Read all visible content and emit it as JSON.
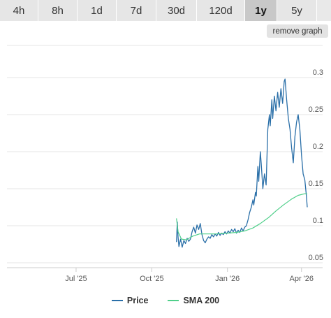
{
  "tabs": [
    {
      "label": "4h",
      "active": false
    },
    {
      "label": "8h",
      "active": false
    },
    {
      "label": "1d",
      "active": false
    },
    {
      "label": "7d",
      "active": false
    },
    {
      "label": "30d",
      "active": false
    },
    {
      "label": "120d",
      "active": false
    },
    {
      "label": "1y",
      "active": true
    },
    {
      "label": "5y",
      "active": false
    }
  ],
  "remove_graph_label": "remove graph",
  "colors": {
    "price": "#2a6fa8",
    "sma": "#4fcf8a",
    "grid": "#e6e6e6",
    "axis_text": "#555555"
  },
  "chart_data": {
    "type": "line",
    "x_ticks": [
      "Jul '25",
      "Oct '25",
      "Jan '26",
      "Apr '26"
    ],
    "x_tick_dates": [
      "2025-07-01",
      "2025-10-01",
      "2026-01-01",
      "2026-04-01"
    ],
    "x_range": [
      "2025-04-08",
      "2026-04-08"
    ],
    "y_ticks": [
      0.05,
      0.1,
      0.15,
      0.2,
      0.25,
      0.3
    ],
    "ylim": [
      0.05,
      0.3
    ],
    "grid": true,
    "legend_position": "bottom",
    "series": [
      {
        "name": "Price",
        "color": "#2a6fa8",
        "points": [
          [
            "2025-10-31",
            0.078
          ],
          [
            "2025-11-01",
            0.105
          ],
          [
            "2025-11-02",
            0.085
          ],
          [
            "2025-11-03",
            0.072
          ],
          [
            "2025-11-05",
            0.082
          ],
          [
            "2025-11-07",
            0.071
          ],
          [
            "2025-11-09",
            0.08
          ],
          [
            "2025-11-11",
            0.076
          ],
          [
            "2025-11-13",
            0.083
          ],
          [
            "2025-11-15",
            0.079
          ],
          [
            "2025-11-17",
            0.082
          ],
          [
            "2025-11-19",
            0.092
          ],
          [
            "2025-11-21",
            0.098
          ],
          [
            "2025-11-23",
            0.09
          ],
          [
            "2025-11-25",
            0.101
          ],
          [
            "2025-11-27",
            0.095
          ],
          [
            "2025-11-29",
            0.103
          ],
          [
            "2025-12-01",
            0.088
          ],
          [
            "2025-12-03",
            0.08
          ],
          [
            "2025-12-05",
            0.077
          ],
          [
            "2025-12-07",
            0.082
          ],
          [
            "2025-12-09",
            0.085
          ],
          [
            "2025-12-11",
            0.083
          ],
          [
            "2025-12-13",
            0.088
          ],
          [
            "2025-12-15",
            0.085
          ],
          [
            "2025-12-17",
            0.089
          ],
          [
            "2025-12-19",
            0.086
          ],
          [
            "2025-12-21",
            0.091
          ],
          [
            "2025-12-23",
            0.087
          ],
          [
            "2025-12-25",
            0.09
          ],
          [
            "2025-12-27",
            0.088
          ],
          [
            "2025-12-29",
            0.092
          ],
          [
            "2025-12-31",
            0.089
          ],
          [
            "2026-01-02",
            0.093
          ],
          [
            "2026-01-04",
            0.09
          ],
          [
            "2026-01-06",
            0.095
          ],
          [
            "2026-01-08",
            0.092
          ],
          [
            "2026-01-10",
            0.096
          ],
          [
            "2026-01-12",
            0.09
          ],
          [
            "2026-01-14",
            0.094
          ],
          [
            "2026-01-16",
            0.091
          ],
          [
            "2026-01-18",
            0.097
          ],
          [
            "2026-01-20",
            0.093
          ],
          [
            "2026-01-22",
            0.098
          ],
          [
            "2026-01-24",
            0.1
          ],
          [
            "2026-01-26",
            0.108
          ],
          [
            "2026-01-28",
            0.118
          ],
          [
            "2026-01-30",
            0.125
          ],
          [
            "2026-02-01",
            0.135
          ],
          [
            "2026-02-02",
            0.128
          ],
          [
            "2026-02-04",
            0.145
          ],
          [
            "2026-02-05",
            0.14
          ],
          [
            "2026-02-07",
            0.18
          ],
          [
            "2026-02-08",
            0.16
          ],
          [
            "2026-02-10",
            0.2
          ],
          [
            "2026-02-11",
            0.185
          ],
          [
            "2026-02-13",
            0.15
          ],
          [
            "2026-02-15",
            0.17
          ],
          [
            "2026-02-17",
            0.155
          ],
          [
            "2026-02-19",
            0.23
          ],
          [
            "2026-02-21",
            0.25
          ],
          [
            "2026-02-22",
            0.235
          ],
          [
            "2026-02-24",
            0.27
          ],
          [
            "2026-02-25",
            0.245
          ],
          [
            "2026-02-27",
            0.275
          ],
          [
            "2026-03-01",
            0.255
          ],
          [
            "2026-03-03",
            0.28
          ],
          [
            "2026-03-05",
            0.26
          ],
          [
            "2026-03-07",
            0.285
          ],
          [
            "2026-03-09",
            0.265
          ],
          [
            "2026-03-11",
            0.295
          ],
          [
            "2026-03-12",
            0.298
          ],
          [
            "2026-03-14",
            0.27
          ],
          [
            "2026-03-16",
            0.245
          ],
          [
            "2026-03-18",
            0.23
          ],
          [
            "2026-03-20",
            0.205
          ],
          [
            "2026-03-22",
            0.185
          ],
          [
            "2026-03-24",
            0.22
          ],
          [
            "2026-03-26",
            0.24
          ],
          [
            "2026-03-28",
            0.25
          ],
          [
            "2026-03-30",
            0.23
          ],
          [
            "2026-04-01",
            0.195
          ],
          [
            "2026-04-03",
            0.17
          ],
          [
            "2026-04-05",
            0.162
          ],
          [
            "2026-04-07",
            0.14
          ],
          [
            "2026-04-08",
            0.125
          ]
        ]
      },
      {
        "name": "SMA 200",
        "color": "#4fcf8a",
        "points": [
          [
            "2025-10-31",
            0.11
          ],
          [
            "2025-11-02",
            0.092
          ],
          [
            "2025-11-06",
            0.082
          ],
          [
            "2025-11-12",
            0.081
          ],
          [
            "2025-11-20",
            0.086
          ],
          [
            "2025-11-28",
            0.089
          ],
          [
            "2025-12-08",
            0.089
          ],
          [
            "2025-12-20",
            0.089
          ],
          [
            "2026-01-01",
            0.09
          ],
          [
            "2026-01-12",
            0.091
          ],
          [
            "2026-01-22",
            0.093
          ],
          [
            "2026-02-01",
            0.097
          ],
          [
            "2026-02-10",
            0.103
          ],
          [
            "2026-02-20",
            0.111
          ],
          [
            "2026-03-01",
            0.12
          ],
          [
            "2026-03-10",
            0.128
          ],
          [
            "2026-03-20",
            0.136
          ],
          [
            "2026-03-28",
            0.141
          ],
          [
            "2026-04-04",
            0.143
          ],
          [
            "2026-04-08",
            0.143
          ]
        ]
      }
    ]
  }
}
